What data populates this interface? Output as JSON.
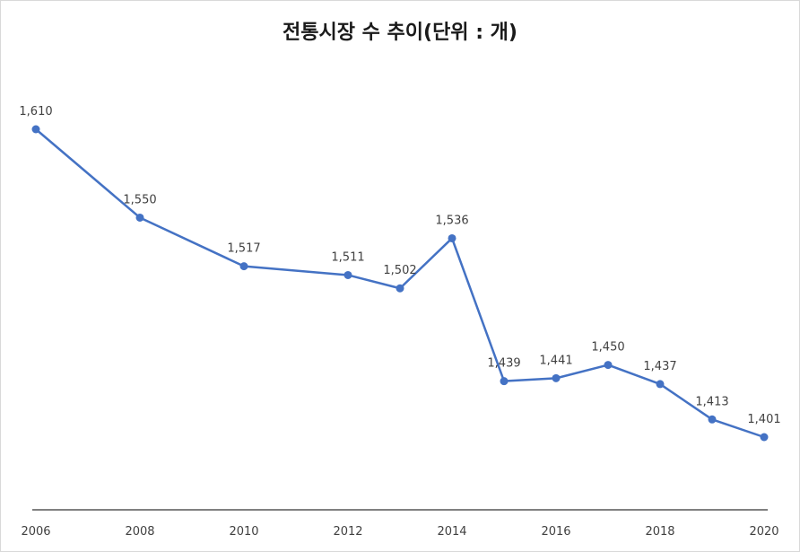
{
  "chart_data": {
    "type": "line",
    "title": "전통시장 수 추이(단위 : 개)",
    "xlabel": "",
    "ylabel": "",
    "x": [
      2006,
      2008,
      2010,
      2012,
      2013,
      2014,
      2015,
      2016,
      2017,
      2018,
      2019,
      2020
    ],
    "x_tick_labels": [
      "2006",
      "2008",
      "2010",
      "2012",
      "2014",
      "2016",
      "2018",
      "2020"
    ],
    "series": [
      {
        "values": [
          1610,
          1550,
          1517,
          1511,
          1502,
          1536,
          1439,
          1441,
          1450,
          1437,
          1413,
          1401
        ],
        "data_labels": [
          "1,610",
          "1,550",
          "1,517",
          "1,511",
          "1,502",
          "1,536",
          "1,439",
          "1,441",
          "1,450",
          "1,437",
          "1,413",
          "1,401"
        ]
      }
    ],
    "ylim": [
      1350,
      1650
    ],
    "grid": false,
    "legend": "none",
    "line_color": "#4472c4",
    "axis_color": "#000000"
  }
}
